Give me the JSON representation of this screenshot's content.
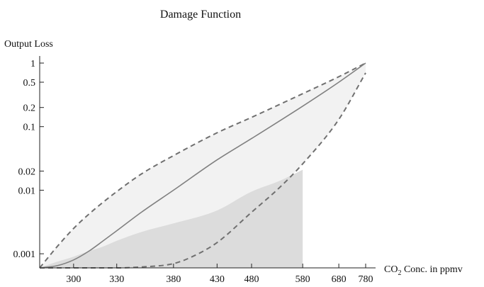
{
  "chart_data": {
    "type": "line",
    "title": "Damage Function",
    "ylabel": "Output Loss",
    "xlabel_main": "CO",
    "xlabel_sub": "2",
    "xlabel_rest": " Conc. in ppmv",
    "y_scale": "log",
    "ylim": [
      0.0006,
      1
    ],
    "y_ticks": [
      {
        "value": 1,
        "label": "1"
      },
      {
        "value": 0.5,
        "label": "0.5"
      },
      {
        "value": 0.2,
        "label": "0.2"
      },
      {
        "value": 0.1,
        "label": "0.1"
      },
      {
        "value": 0.02,
        "label": "0.02"
      },
      {
        "value": 0.01,
        "label": "0.01"
      },
      {
        "value": 0.001,
        "label": "0.001"
      }
    ],
    "x_scale": "reciprocal",
    "xlim": [
      280,
      780
    ],
    "x_ticks": [
      {
        "value": 300,
        "label": "300"
      },
      {
        "value": 330,
        "label": "330"
      },
      {
        "value": 380,
        "label": "380"
      },
      {
        "value": 430,
        "label": "430"
      },
      {
        "value": 480,
        "label": "480"
      },
      {
        "value": 580,
        "label": "580"
      },
      {
        "value": 680,
        "label": "680"
      },
      {
        "value": 780,
        "label": "780"
      }
    ],
    "series": [
      {
        "role": "central",
        "style": "solid",
        "color": "#808080",
        "x": [
          280,
          290,
          300,
          310,
          320,
          330,
          350,
          380,
          430,
          480,
          580,
          680,
          780
        ],
        "y": [
          0.0006,
          0.00065,
          0.0008,
          0.0011,
          0.0016,
          0.0023,
          0.0045,
          0.01,
          0.03,
          0.065,
          0.21,
          0.5,
          1
        ]
      },
      {
        "role": "upper",
        "style": "dashed",
        "color": "#707070",
        "x": [
          280,
          290,
          300,
          310,
          320,
          330,
          350,
          380,
          430,
          480,
          580,
          680,
          780
        ],
        "y": [
          0.0006,
          0.0013,
          0.0025,
          0.0042,
          0.0065,
          0.0095,
          0.018,
          0.035,
          0.08,
          0.14,
          0.33,
          0.61,
          1
        ]
      },
      {
        "role": "lower",
        "style": "dashed",
        "color": "#707070",
        "x": [
          280,
          300,
          330,
          350,
          380,
          400,
          430,
          480,
          530,
          580,
          680,
          780
        ],
        "y": [
          0.0006,
          0.0006,
          0.0006,
          0.00062,
          0.0007,
          0.0009,
          0.0015,
          0.0045,
          0.011,
          0.026,
          0.13,
          0.7
        ]
      },
      {
        "role": "region",
        "style": "filled",
        "color": "#dcdcdc",
        "x": [
          280,
          290,
          300,
          310,
          320,
          330,
          350,
          380,
          430,
          480,
          530,
          580
        ],
        "y": [
          0.0006,
          0.00075,
          0.0009,
          0.0011,
          0.0013,
          0.0016,
          0.0022,
          0.003,
          0.0048,
          0.0095,
          0.014,
          0.021
        ]
      }
    ],
    "band_fill_color": "#f2f2f2",
    "axis_color": "#222222"
  }
}
